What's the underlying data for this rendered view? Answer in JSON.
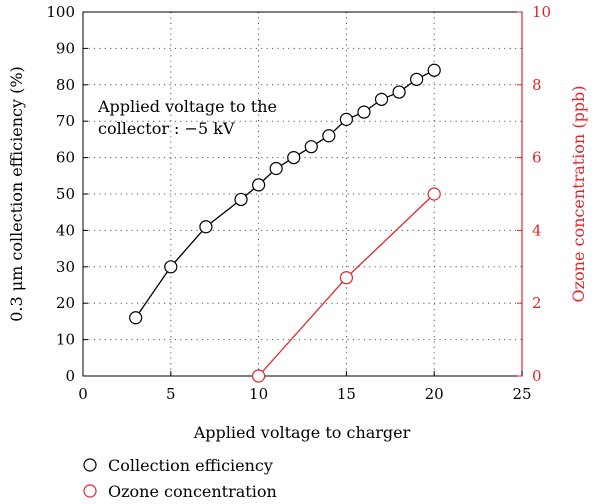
{
  "chart_data": {
    "type": "line",
    "xlabel": "Applied voltage to charger",
    "ylabel": "0.3 μm collection efficiency (%)",
    "y2label": "Ozone concentration (ppb)",
    "xlim": [
      0,
      25
    ],
    "ylim": [
      0,
      100
    ],
    "y2lim": [
      0,
      10
    ],
    "xticks": [
      "0",
      "5",
      "10",
      "15",
      "20",
      "25"
    ],
    "yticks": [
      "0",
      "10",
      "20",
      "30",
      "40",
      "50",
      "60",
      "70",
      "80",
      "90",
      "100"
    ],
    "y2ticks": [
      "0",
      "2",
      "4",
      "6",
      "8",
      "10"
    ],
    "grid": true,
    "annotation": [
      "Applied voltage to the",
      "collector : −5 kV"
    ],
    "legend_position": "bottom-left",
    "series": [
      {
        "name": "Collection efficiency",
        "axis": "left",
        "color": "#000000",
        "x": [
          3,
          5,
          7,
          9,
          10,
          11,
          12,
          13,
          14,
          15,
          16,
          17,
          18,
          19,
          20
        ],
        "y": [
          16,
          30,
          41,
          48.5,
          52.5,
          57,
          60,
          63,
          66,
          70.5,
          72.5,
          76,
          78,
          81.5,
          84
        ]
      },
      {
        "name": "Ozone concentration",
        "axis": "right",
        "color": "#e0262b",
        "x": [
          10,
          15,
          20
        ],
        "y": [
          0,
          2.7,
          5
        ]
      }
    ]
  }
}
